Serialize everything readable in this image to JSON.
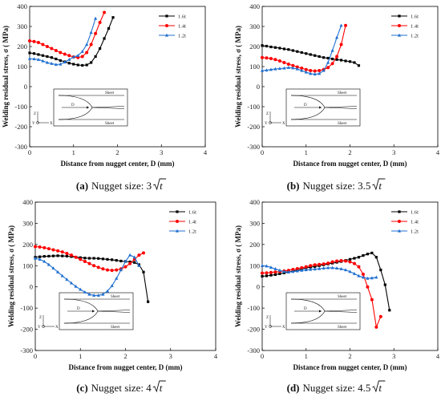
{
  "inset_labels": {
    "sheet": "Sheet",
    "d": "D",
    "z": "Z",
    "y": "Y",
    "x": "X"
  },
  "chart_data": [
    {
      "type": "line",
      "caption_letter": "(a)",
      "caption_text": "Nugget size: 3",
      "caption_root": "t",
      "xlabel": "Distance from nugget center, D (mm)",
      "ylabel": "Welding residual stress, σ ( MPa)",
      "xlim": [
        0,
        4
      ],
      "ylim": [
        -300,
        400
      ],
      "xticks": [
        "0",
        "1",
        "2",
        "3",
        "4"
      ],
      "yticks": [
        "-300",
        "-200",
        "-100",
        "0",
        "100",
        "200",
        "300",
        "400"
      ],
      "legend_position": "top-right",
      "series": [
        {
          "name": "1.6t",
          "color": "#000000",
          "marker": "square",
          "x": [
            0,
            0.1,
            0.2,
            0.3,
            0.4,
            0.5,
            0.6,
            0.7,
            0.8,
            0.9,
            1.0,
            1.1,
            1.2,
            1.3,
            1.4,
            1.5,
            1.6,
            1.7,
            1.8,
            1.9
          ],
          "y": [
            168,
            165,
            160,
            155,
            150,
            145,
            138,
            130,
            124,
            117,
            112,
            108,
            106,
            108,
            120,
            150,
            190,
            240,
            290,
            345
          ]
        },
        {
          "name": "1.4t",
          "color": "#ff0000",
          "marker": "circle",
          "x": [
            0,
            0.1,
            0.2,
            0.3,
            0.4,
            0.5,
            0.6,
            0.7,
            0.8,
            0.9,
            1.0,
            1.1,
            1.2,
            1.3,
            1.4,
            1.5,
            1.6,
            1.7
          ],
          "y": [
            228,
            225,
            220,
            210,
            200,
            190,
            180,
            170,
            162,
            155,
            148,
            145,
            150,
            170,
            210,
            265,
            320,
            370
          ]
        },
        {
          "name": "1.2t",
          "color": "#1f6fd0",
          "marker": "triangle",
          "x": [
            0,
            0.1,
            0.2,
            0.3,
            0.4,
            0.5,
            0.6,
            0.7,
            0.8,
            0.9,
            1.0,
            1.1,
            1.2,
            1.3,
            1.4,
            1.5
          ],
          "y": [
            140,
            138,
            135,
            128,
            120,
            115,
            110,
            112,
            122,
            135,
            148,
            155,
            175,
            210,
            270,
            340
          ]
        }
      ]
    },
    {
      "type": "line",
      "caption_letter": "(b)",
      "caption_text": "Nugget size: 3.5",
      "caption_root": "t",
      "xlabel": "Distance from nugget center, D (mm)",
      "ylabel": "Welding residual stress, σ ( MPa)",
      "xlim": [
        0,
        4
      ],
      "ylim": [
        -300,
        400
      ],
      "xticks": [
        "0",
        "1",
        "2",
        "3",
        "4"
      ],
      "yticks": [
        "-300",
        "-200",
        "-100",
        "0",
        "100",
        "200",
        "300",
        "400"
      ],
      "legend_position": "top-right",
      "series": [
        {
          "name": "1.6t",
          "color": "#000000",
          "marker": "square",
          "x": [
            0,
            0.1,
            0.2,
            0.3,
            0.4,
            0.5,
            0.6,
            0.7,
            0.8,
            0.9,
            1.0,
            1.1,
            1.2,
            1.3,
            1.4,
            1.5,
            1.6,
            1.7,
            1.8,
            1.9,
            2.0,
            2.1,
            2.2
          ],
          "y": [
            205,
            202,
            198,
            195,
            192,
            188,
            185,
            180,
            175,
            170,
            165,
            160,
            155,
            150,
            145,
            142,
            138,
            135,
            132,
            128,
            125,
            120,
            105
          ]
        },
        {
          "name": "1.4t",
          "color": "#ff0000",
          "marker": "circle",
          "x": [
            0,
            0.1,
            0.2,
            0.3,
            0.4,
            0.5,
            0.6,
            0.7,
            0.8,
            0.9,
            1.0,
            1.1,
            1.2,
            1.3,
            1.4,
            1.5,
            1.6,
            1.7,
            1.8,
            1.9
          ],
          "y": [
            145,
            143,
            140,
            135,
            128,
            120,
            112,
            105,
            98,
            92,
            85,
            80,
            78,
            80,
            85,
            95,
            115,
            150,
            210,
            305
          ]
        },
        {
          "name": "1.2t",
          "color": "#1f6fd0",
          "marker": "triangle",
          "x": [
            0,
            0.1,
            0.2,
            0.3,
            0.4,
            0.5,
            0.6,
            0.7,
            0.8,
            0.9,
            1.0,
            1.1,
            1.2,
            1.3,
            1.4,
            1.5,
            1.6,
            1.7,
            1.8
          ],
          "y": [
            80,
            82,
            85,
            88,
            90,
            92,
            95,
            93,
            88,
            80,
            72,
            65,
            62,
            65,
            80,
            120,
            180,
            245,
            305
          ]
        }
      ]
    },
    {
      "type": "line",
      "caption_letter": "(c)",
      "caption_text": "Nugget size: 4",
      "caption_root": "t",
      "xlabel": "Distance from nugget center, D (mm)",
      "ylabel": "Welding residual stress, σ ( MPa)",
      "xlim": [
        0,
        4
      ],
      "ylim": [
        -300,
        400
      ],
      "xticks": [
        "0",
        "1",
        "2",
        "3",
        "4"
      ],
      "yticks": [
        "-300",
        "-200",
        "-100",
        "0",
        "100",
        "200",
        "300",
        "400"
      ],
      "legend_position": "top-right",
      "series": [
        {
          "name": "1.6t",
          "color": "#000000",
          "marker": "square",
          "x": [
            0,
            0.1,
            0.2,
            0.3,
            0.4,
            0.5,
            0.6,
            0.7,
            0.8,
            0.9,
            1.0,
            1.1,
            1.2,
            1.3,
            1.4,
            1.5,
            1.6,
            1.7,
            1.8,
            1.9,
            2.0,
            2.1,
            2.2,
            2.3,
            2.4,
            2.5
          ],
          "y": [
            140,
            142,
            144,
            145,
            146,
            147,
            146,
            145,
            143,
            140,
            138,
            136,
            135,
            135,
            134,
            132,
            130,
            128,
            125,
            122,
            120,
            118,
            115,
            105,
            70,
            -70
          ]
        },
        {
          "name": "1.4t",
          "color": "#ff0000",
          "marker": "circle",
          "x": [
            0,
            0.1,
            0.2,
            0.3,
            0.4,
            0.5,
            0.6,
            0.7,
            0.8,
            0.9,
            1.0,
            1.1,
            1.2,
            1.3,
            1.4,
            1.5,
            1.6,
            1.7,
            1.8,
            1.9,
            2.0,
            2.1,
            2.2,
            2.3,
            2.4
          ],
          "y": [
            190,
            188,
            185,
            180,
            175,
            170,
            165,
            158,
            150,
            140,
            130,
            120,
            110,
            100,
            92,
            85,
            80,
            78,
            80,
            85,
            95,
            110,
            130,
            150,
            160
          ]
        },
        {
          "name": "1.2t",
          "color": "#1f6fd0",
          "marker": "triangle",
          "x": [
            0,
            0.1,
            0.2,
            0.3,
            0.4,
            0.5,
            0.6,
            0.7,
            0.8,
            0.9,
            1.0,
            1.1,
            1.2,
            1.3,
            1.4,
            1.5,
            1.6,
            1.7,
            1.8,
            1.9,
            2.0,
            2.1,
            2.2,
            2.3
          ],
          "y": [
            135,
            130,
            120,
            105,
            88,
            70,
            52,
            35,
            18,
            2,
            -12,
            -25,
            -35,
            -40,
            -40,
            -35,
            -20,
            5,
            40,
            80,
            120,
            150,
            140,
            100
          ]
        }
      ]
    },
    {
      "type": "line",
      "caption_letter": "(d)",
      "caption_text": "Nugget size: 4.5",
      "caption_root": "t",
      "xlabel": "Distance from nugget center, D (mm)",
      "ylabel": "Welding residual stress, σ ( MPa)",
      "xlim": [
        0,
        4
      ],
      "ylim": [
        -300,
        400
      ],
      "xticks": [
        "0",
        "1",
        "2",
        "3",
        "4"
      ],
      "yticks": [
        "-300",
        "-200",
        "-100",
        "0",
        "100",
        "200",
        "300",
        "400"
      ],
      "legend_position": "top-right",
      "series": [
        {
          "name": "1.6t",
          "color": "#000000",
          "marker": "square",
          "x": [
            0,
            0.1,
            0.2,
            0.3,
            0.4,
            0.5,
            0.6,
            0.7,
            0.8,
            0.9,
            1.0,
            1.1,
            1.2,
            1.3,
            1.4,
            1.5,
            1.6,
            1.7,
            1.8,
            1.9,
            2.0,
            2.1,
            2.2,
            2.3,
            2.4,
            2.5,
            2.6,
            2.7,
            2.8,
            2.9
          ],
          "y": [
            50,
            52,
            55,
            58,
            62,
            66,
            70,
            75,
            80,
            85,
            90,
            93,
            96,
            100,
            104,
            108,
            112,
            116,
            120,
            125,
            130,
            135,
            140,
            148,
            155,
            160,
            140,
            80,
            10,
            -110
          ]
        },
        {
          "name": "1.4t",
          "color": "#ff0000",
          "marker": "circle",
          "x": [
            0,
            0.1,
            0.2,
            0.3,
            0.4,
            0.5,
            0.6,
            0.7,
            0.8,
            0.9,
            1.0,
            1.1,
            1.2,
            1.3,
            1.4,
            1.5,
            1.6,
            1.7,
            1.8,
            1.9,
            2.0,
            2.1,
            2.2,
            2.3,
            2.4,
            2.5,
            2.6,
            2.7
          ],
          "y": [
            65,
            66,
            68,
            70,
            72,
            75,
            78,
            82,
            86,
            90,
            95,
            100,
            104,
            106,
            108,
            112,
            118,
            122,
            124,
            122,
            118,
            110,
            95,
            60,
            0,
            -60,
            -190,
            -140
          ]
        },
        {
          "name": "1.2t",
          "color": "#1f6fd0",
          "marker": "triangle",
          "x": [
            0,
            0.1,
            0.2,
            0.3,
            0.4,
            0.5,
            0.6,
            0.7,
            0.8,
            0.9,
            1.0,
            1.1,
            1.2,
            1.3,
            1.4,
            1.5,
            1.6,
            1.7,
            1.8,
            1.9,
            2.0,
            2.1,
            2.2,
            2.3,
            2.4,
            2.5,
            2.6
          ],
          "y": [
            100,
            98,
            92,
            85,
            78,
            72,
            70,
            72,
            75,
            78,
            80,
            82,
            84,
            86,
            88,
            90,
            90,
            88,
            85,
            80,
            72,
            62,
            52,
            45,
            40,
            42,
            45
          ]
        }
      ]
    }
  ]
}
